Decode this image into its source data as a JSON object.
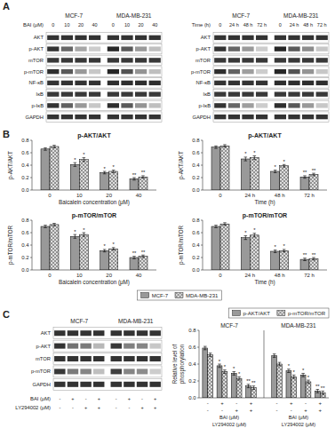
{
  "chart_data": [
    {
      "type": "blot",
      "panel_label": "A",
      "rows": [
        "AKT",
        "p-AKT",
        "mTOR",
        "p-mTOR",
        "NF-κB",
        "IκB",
        "p-IκB",
        "GAPDH"
      ],
      "groups": [
        "MCF-7",
        "MDA-MB-231"
      ],
      "lane_rows": [
        {
          "label": "BAI (μM)",
          "values": [
            "0",
            "10",
            "20",
            "40"
          ]
        }
      ],
      "cells": [
        [
          [
            0.2,
            0.2,
            0.2,
            0.2
          ],
          [
            0.2,
            0.2,
            0.2,
            0.2
          ]
        ],
        [
          [
            0.2,
            0.4,
            0.65,
            0.8
          ],
          [
            0.15,
            0.35,
            0.6,
            0.75
          ]
        ],
        [
          [
            0.22,
            0.22,
            0.22,
            0.22
          ],
          [
            0.22,
            0.22,
            0.22,
            0.22
          ]
        ],
        [
          [
            0.18,
            0.35,
            0.6,
            0.78
          ],
          [
            0.15,
            0.32,
            0.58,
            0.75
          ]
        ],
        [
          [
            0.2,
            0.2,
            0.2,
            0.2
          ],
          [
            0.18,
            0.18,
            0.18,
            0.18
          ]
        ],
        [
          [
            0.22,
            0.22,
            0.22,
            0.22
          ],
          [
            0.22,
            0.22,
            0.22,
            0.22
          ]
        ],
        [
          [
            0.2,
            0.38,
            0.6,
            0.78
          ],
          [
            0.18,
            0.35,
            0.58,
            0.75
          ]
        ],
        [
          [
            0.2,
            0.2,
            0.2,
            0.2
          ],
          [
            0.2,
            0.2,
            0.2,
            0.2
          ]
        ]
      ]
    },
    {
      "type": "blot",
      "rows": [
        "AKT",
        "p-AKT",
        "mTOR",
        "p-mTOR",
        "NF-κB",
        "IκB",
        "p-IκB",
        "GAPDH"
      ],
      "groups": [
        "MCF-7",
        "MDA-MB-231"
      ],
      "lane_rows": [
        {
          "label": "Time (h)",
          "values": [
            "0",
            "24 h",
            "48 h",
            "72 h"
          ]
        }
      ],
      "cells": [
        [
          [
            0.2,
            0.2,
            0.2,
            0.2
          ],
          [
            0.2,
            0.2,
            0.2,
            0.2
          ]
        ],
        [
          [
            0.2,
            0.4,
            0.6,
            0.8
          ],
          [
            0.15,
            0.35,
            0.55,
            0.78
          ]
        ],
        [
          [
            0.22,
            0.22,
            0.22,
            0.22
          ],
          [
            0.22,
            0.22,
            0.22,
            0.22
          ]
        ],
        [
          [
            0.18,
            0.38,
            0.62,
            0.8
          ],
          [
            0.15,
            0.32,
            0.58,
            0.78
          ]
        ],
        [
          [
            0.2,
            0.2,
            0.2,
            0.2
          ],
          [
            0.18,
            0.18,
            0.18,
            0.18
          ]
        ],
        [
          [
            0.22,
            0.22,
            0.22,
            0.22
          ],
          [
            0.22,
            0.22,
            0.22,
            0.22
          ]
        ],
        [
          [
            0.2,
            0.4,
            0.62,
            0.8
          ],
          [
            0.18,
            0.35,
            0.6,
            0.78
          ]
        ],
        [
          [
            0.2,
            0.2,
            0.2,
            0.2
          ],
          [
            0.2,
            0.2,
            0.2,
            0.2
          ]
        ]
      ]
    },
    {
      "type": "bar",
      "panel_label": "B",
      "title": "p-AKT/AKT",
      "xlabel": "Baicalein concentration (μM)",
      "ylabel": "p-AKT/AKT",
      "categories": [
        "0",
        "10",
        "20",
        "40"
      ],
      "ylim": [
        0,
        0.8
      ],
      "yticks": [
        {
          "value": 0,
          "label": "0.0"
        },
        0.2,
        0.4,
        0.6,
        0.8
      ],
      "series": [
        {
          "color": "#999999",
          "values": [
            0.66,
            0.41,
            0.28,
            0.18
          ],
          "errors": [
            0.02,
            0.03,
            0.02,
            0.02
          ],
          "annotations": [
            null,
            "*",
            "*",
            "**"
          ]
        },
        {
          "color": "#dddddd",
          "values": [
            0.7,
            0.49,
            0.3,
            0.21
          ],
          "errors": [
            0.02,
            0.03,
            0.02,
            0.02
          ],
          "annotations": [
            null,
            "*",
            "*",
            "**"
          ]
        }
      ]
    },
    {
      "type": "bar",
      "title": "p-AKT/AKT",
      "xlabel": "Time (h)",
      "ylabel": "p-AKT/AKT",
      "categories": [
        "0",
        "24 h",
        "48 h",
        "72 h"
      ],
      "ylim": [
        0,
        0.8
      ],
      "yticks": [
        {
          "value": 0,
          "label": "0.0"
        },
        0.2,
        0.4,
        0.6,
        0.8
      ],
      "series": [
        {
          "color": "#999999",
          "values": [
            0.69,
            0.5,
            0.3,
            0.21
          ],
          "errors": [
            0.02,
            0.03,
            0.02,
            0.02
          ],
          "annotations": [
            null,
            "*",
            "*",
            "**"
          ]
        },
        {
          "color": "#dddddd",
          "values": [
            0.71,
            0.52,
            0.39,
            0.25
          ],
          "errors": [
            0.02,
            0.03,
            0.02,
            0.02
          ],
          "annotations": [
            null,
            "*",
            "*",
            "**"
          ]
        }
      ]
    },
    {
      "type": "bar",
      "title": "p-mTOR/mTOR",
      "xlabel": "Baicalein concentration (μM)",
      "ylabel": "p-mTOR/mTOR",
      "categories": [
        "0",
        "10",
        "20",
        "40"
      ],
      "ylim": [
        0,
        0.8
      ],
      "yticks": [
        {
          "value": 0,
          "label": "0.0"
        },
        0.2,
        0.4,
        0.6,
        0.8
      ],
      "series": [
        {
          "color": "#999999",
          "values": [
            0.7,
            0.54,
            0.31,
            0.2
          ],
          "errors": [
            0.02,
            0.03,
            0.02,
            0.02
          ],
          "annotations": [
            null,
            "*",
            "*",
            "**"
          ]
        },
        {
          "color": "#dddddd",
          "values": [
            0.73,
            0.57,
            0.34,
            0.22
          ],
          "errors": [
            0.02,
            0.03,
            0.02,
            0.02
          ],
          "annotations": [
            null,
            "*",
            "*",
            "**"
          ]
        }
      ]
    },
    {
      "type": "bar",
      "title": "p-mTOR/mTOR",
      "xlabel": "Time (h)",
      "ylabel": "p-mTOR/mTOR",
      "categories": [
        "0",
        "24 h",
        "48 h",
        "72 h"
      ],
      "ylim": [
        0,
        0.8
      ],
      "yticks": [
        {
          "value": 0,
          "label": "0.0"
        },
        0.2,
        0.4,
        0.6,
        0.8
      ],
      "legend": "bottom",
      "series": [
        {
          "name": "MCF-7",
          "color": "#999999",
          "values": [
            0.7,
            0.52,
            0.3,
            0.17
          ],
          "errors": [
            0.02,
            0.03,
            0.02,
            0.02
          ],
          "annotations": [
            null,
            "*",
            "*",
            "**"
          ]
        },
        {
          "name": "MDA-MB-231",
          "color": "#dddddd",
          "values": [
            0.74,
            0.56,
            0.31,
            0.18
          ],
          "errors": [
            0.02,
            0.03,
            0.02,
            0.02
          ],
          "annotations": [
            null,
            "*",
            "*",
            "**"
          ]
        }
      ]
    },
    {
      "type": "blot",
      "panel_label": "C",
      "rows": [
        "AKT",
        "p-AKT",
        "mTOR",
        "p-mTOR",
        "GAPDH"
      ],
      "groups": [
        "MCF-7",
        "MDA-MB-231"
      ],
      "lane_rows": [
        {
          "label": "BAI (μM)",
          "values": [
            "-",
            "+",
            "-",
            "+"
          ]
        },
        {
          "label": "LY294002 (μM)",
          "values": [
            "-",
            "-",
            "+",
            "+"
          ]
        }
      ],
      "cells": [
        [
          [
            0.2,
            0.2,
            0.2,
            0.2
          ],
          [
            0.2,
            0.2,
            0.2,
            0.2
          ]
        ],
        [
          [
            0.2,
            0.45,
            0.48,
            0.72
          ],
          [
            0.22,
            0.5,
            0.52,
            0.78
          ]
        ],
        [
          [
            0.2,
            0.2,
            0.2,
            0.2
          ],
          [
            0.2,
            0.2,
            0.2,
            0.2
          ]
        ],
        [
          [
            0.22,
            0.48,
            0.52,
            0.75
          ],
          [
            0.25,
            0.52,
            0.55,
            0.8
          ]
        ],
        [
          [
            0.2,
            0.2,
            0.2,
            0.2
          ],
          [
            0.2,
            0.2,
            0.2,
            0.2
          ]
        ]
      ]
    },
    {
      "type": "bar",
      "ylabel": "Relative level of\nphosphorylation",
      "group_labels": [
        "MCF-7",
        "MDA-MB-231"
      ],
      "categories": [
        "-",
        "+",
        "-",
        "+",
        "-",
        "+",
        "-",
        "+"
      ],
      "categories_2": [
        "-",
        "-",
        "+",
        "+",
        "-",
        "-",
        "+",
        "+"
      ],
      "category_row_labels": [
        "BAI (μM)",
        "LY294002 (μM)"
      ],
      "ylim": [
        0,
        0.8
      ],
      "yticks": [
        {
          "value": 0,
          "label": "0.0"
        },
        0.2,
        0.4,
        0.6,
        0.8
      ],
      "legend": "upper right",
      "series": [
        {
          "name": "p-AKT/AKT",
          "color": "#999999",
          "values": [
            0.59,
            0.38,
            0.29,
            0.14,
            0.5,
            0.32,
            0.27,
            0.08
          ],
          "errors": [
            0.02,
            0.02,
            0.02,
            0.02,
            0.02,
            0.02,
            0.02,
            0.02
          ],
          "annotations": [
            null,
            "*",
            "*",
            "**",
            null,
            "*",
            "*",
            "**"
          ]
        },
        {
          "name": "p-mTOR/mTOR",
          "color": "#dddddd",
          "values": [
            0.51,
            0.31,
            0.23,
            0.12,
            0.4,
            0.25,
            0.19,
            0.06
          ],
          "errors": [
            0.02,
            0.02,
            0.02,
            0.02,
            0.02,
            0.02,
            0.02,
            0.02
          ],
          "annotations": [
            null,
            "*",
            "*",
            "**",
            null,
            "*",
            "*",
            "**"
          ]
        }
      ]
    }
  ]
}
